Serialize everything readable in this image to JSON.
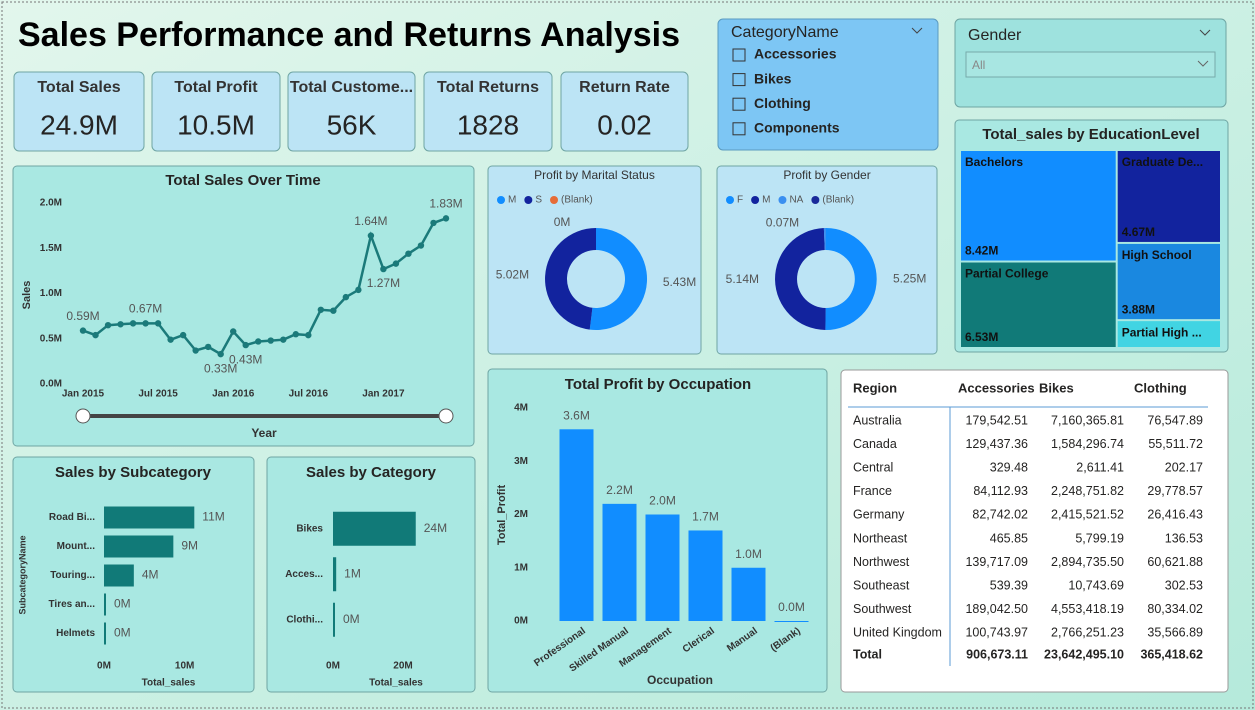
{
  "title": "Sales Performance and Returns Analysis",
  "kpis": [
    {
      "label": "Total Sales",
      "value": "24.9M"
    },
    {
      "label": "Total Profit",
      "value": "10.5M"
    },
    {
      "label": "Total Custome...",
      "value": "56K"
    },
    {
      "label": "Total Returns",
      "value": 1828
    },
    {
      "label": "Return Rate",
      "value": 0.02
    }
  ],
  "slicers": {
    "category": {
      "title": "CategoryName",
      "options": [
        "Accessories",
        "Bikes",
        "Clothing",
        "Components"
      ]
    },
    "gender": {
      "title": "Gender",
      "value": "All"
    }
  },
  "chart_data": [
    {
      "type": "line",
      "title": "Total Sales Over Time",
      "x_label": "Year",
      "y_label": "Sales",
      "color": "#1b7a7a",
      "grid": false,
      "categories": [
        "Jan 2015",
        null,
        null,
        null,
        null,
        null,
        "Jul 2015",
        null,
        null,
        null,
        null,
        null,
        "Jan 2016",
        null,
        null,
        null,
        null,
        null,
        "Jul 2016",
        null,
        null,
        null,
        null,
        null,
        "Jan 2017",
        null,
        null,
        null,
        null,
        null
      ],
      "values": [
        0.59,
        0.54,
        0.65,
        0.66,
        0.67,
        0.67,
        0.67,
        0.49,
        0.54,
        0.37,
        0.41,
        0.33,
        0.58,
        0.43,
        0.47,
        0.48,
        0.49,
        0.55,
        0.54,
        0.82,
        0.81,
        0.96,
        1.04,
        1.64,
        1.27,
        1.33,
        1.44,
        1.53,
        1.78,
        1.83
      ],
      "value_labels": [
        "0.59M",
        null,
        null,
        null,
        null,
        "0.67M",
        null,
        null,
        null,
        null,
        null,
        "0.33M",
        null,
        "0.43M",
        null,
        null,
        null,
        null,
        null,
        null,
        null,
        null,
        null,
        "1.64M",
        "1.27M",
        null,
        null,
        null,
        null,
        "1.83M"
      ],
      "ylim": [
        0,
        2
      ],
      "yticks": [
        {
          "value": 0,
          "label": "0.0M"
        },
        {
          "value": 0.5,
          "label": "0.5M"
        },
        {
          "value": 1,
          "label": "1.0M"
        },
        {
          "value": 1.5,
          "label": "1.5M"
        },
        {
          "value": 2,
          "label": "2.0M"
        }
      ]
    },
    {
      "type": "donut",
      "title": "Profit by Marital Status",
      "categories": [
        "M",
        "S",
        "(Blank)"
      ],
      "colors": [
        "#118dff",
        "#12239e",
        "#e66c37"
      ],
      "values": [
        5.43,
        5.02,
        0
      ],
      "value_labels": [
        "5.43M",
        "5.02M",
        "0M"
      ]
    },
    {
      "type": "donut",
      "title": "Profit by Gender",
      "categories": [
        "F",
        "M",
        "NA",
        "(Blank)"
      ],
      "colors": [
        "#118dff",
        "#12239e",
        "#3a8ff0",
        "#1a2a9a"
      ],
      "values": [
        5.25,
        5.14,
        0.07,
        null
      ],
      "value_labels": [
        "5.25M",
        "5.14M",
        "0.07M",
        null
      ]
    },
    {
      "type": "treemap",
      "title": "Total_sales by EducationLevel",
      "categories": [
        "Bachelors",
        "Partial College",
        "Graduate De...",
        "High School",
        "Partial High ..."
      ],
      "colors": [
        "#118dff",
        "#117a78",
        "#12239e",
        "#1a88e0",
        "#41d4e3"
      ],
      "values": [
        8.42,
        6.53,
        4.67,
        3.88,
        1.4
      ],
      "value_labels": [
        "8.42M",
        "6.53M",
        "4.67M",
        "3.88M",
        null
      ]
    },
    {
      "type": "hbar",
      "title": "Sales by Subcategory",
      "x_label": "Total_sales",
      "y_label": "SubcategoryName",
      "color": "#117a78",
      "categories": [
        "Road Bi...",
        "Mount...",
        "Touring...",
        "Tires an...",
        "Helmets"
      ],
      "values": [
        11.2,
        8.6,
        3.7,
        0.2,
        0.2
      ],
      "value_labels": [
        "11M",
        "9M",
        "4M",
        "0M",
        "0M"
      ],
      "xlim": [
        0,
        16
      ],
      "xticks": [
        {
          "value": 0,
          "label": "0M"
        },
        {
          "value": 10,
          "label": "10M"
        }
      ]
    },
    {
      "type": "hbar",
      "title": "Sales by Category",
      "x_label": "Total_sales",
      "color": "#117a78",
      "categories": [
        "Bikes",
        "Acces...",
        "Clothi..."
      ],
      "values": [
        23.64,
        0.91,
        0.37
      ],
      "value_labels": [
        "24M",
        "1M",
        "0M"
      ],
      "xlim": [
        0,
        36
      ],
      "xticks": [
        {
          "value": 0,
          "label": "0M"
        },
        {
          "value": 20,
          "label": "20M"
        }
      ]
    },
    {
      "type": "bar",
      "title": "Total Profit by Occupation",
      "x_label": "Occupation",
      "y_label": "Total_Profit",
      "color": "#118dff",
      "categories": [
        "Professional",
        "Skilled Manual",
        "Management",
        "Clerical",
        "Manual",
        "(Blank)"
      ],
      "values": [
        3.6,
        2.2,
        2.0,
        1.7,
        1.0,
        0.0
      ],
      "value_labels": [
        "3.6M",
        "2.2M",
        "2.0M",
        "1.7M",
        "1.0M",
        "0.0M"
      ],
      "ylim": [
        0,
        4
      ],
      "yticks": [
        {
          "value": 0,
          "label": "0M"
        },
        {
          "value": 1,
          "label": "1M"
        },
        {
          "value": 2,
          "label": "2M"
        },
        {
          "value": 3,
          "label": "3M"
        },
        {
          "value": 4,
          "label": "4M"
        }
      ]
    }
  ],
  "table": {
    "columns": [
      "Region",
      "Accessories",
      "Bikes",
      "Clothing"
    ],
    "rows": [
      [
        "Australia",
        "179,542.51",
        "7,160,365.81",
        "76,547.89"
      ],
      [
        "Canada",
        "129,437.36",
        "1,584,296.74",
        "55,511.72"
      ],
      [
        "Central",
        "329.48",
        "2,611.41",
        "202.17"
      ],
      [
        "France",
        "84,112.93",
        "2,248,751.82",
        "29,778.57"
      ],
      [
        "Germany",
        "82,742.02",
        "2,415,521.52",
        "26,416.43"
      ],
      [
        "Northeast",
        "465.85",
        "5,799.19",
        "136.53"
      ],
      [
        "Northwest",
        "139,717.09",
        "2,894,735.50",
        "60,621.88"
      ],
      [
        "Southeast",
        "539.39",
        "10,743.69",
        "302.53"
      ],
      [
        "Southwest",
        "189,042.50",
        "4,553,418.19",
        "80,334.02"
      ],
      [
        "United Kingdom",
        "100,743.97",
        "2,766,251.23",
        "35,566.89"
      ]
    ],
    "total": [
      "Total",
      "906,673.11",
      "23,642,495.10",
      "365,418.62"
    ]
  }
}
